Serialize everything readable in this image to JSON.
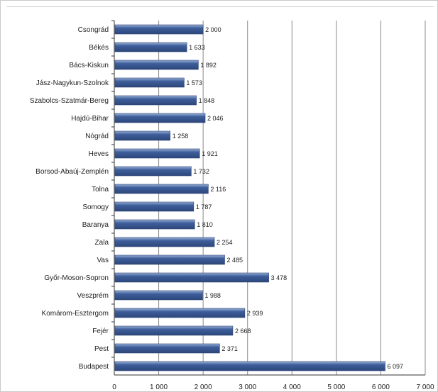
{
  "chart_data": {
    "type": "bar",
    "orientation": "horizontal",
    "title": "",
    "xlabel": "",
    "ylabel": "",
    "grid": true,
    "xlim": [
      0,
      7000
    ],
    "x_ticks": [
      "0",
      "1 000",
      "2 000",
      "3 000",
      "4 000",
      "5 000",
      "6 000",
      "7 000"
    ],
    "categories": [
      "Csongrád",
      "Békés",
      "Bács-Kiskun",
      "Jász-Nagykun-Szolnok",
      "Szabolcs-Szatmár-Bereg",
      "Hajdú-Bihar",
      "Nógrád",
      "Heves",
      "Borsod-Abaúj-Zemplén",
      "Tolna",
      "Somogy",
      "Baranya",
      "Zala",
      "Vas",
      "Győr-Moson-Sopron",
      "Veszprém",
      "Komárom-Esztergom",
      "Fejér",
      "Pest",
      "Budapest"
    ],
    "values": [
      2000,
      1633,
      1892,
      1573,
      1848,
      2046,
      1258,
      1921,
      1732,
      2116,
      1787,
      1810,
      2254,
      2485,
      3478,
      1988,
      2939,
      2668,
      2371,
      6097
    ],
    "value_labels": [
      "2 000",
      "1 633",
      "1 892",
      "1 573",
      "1 848",
      "2 046",
      "1 258",
      "1 921",
      "1 732",
      "2 116",
      "1 787",
      "1 810",
      "2 254",
      "2 485",
      "3 478",
      "1 988",
      "2 939",
      "2 668",
      "2 371",
      "6 097"
    ],
    "colors": {
      "bar": "#3e5f9c",
      "bar_highlight": "#9bb0d6",
      "grid": "#8a8a8a",
      "axis": "#333333"
    }
  }
}
